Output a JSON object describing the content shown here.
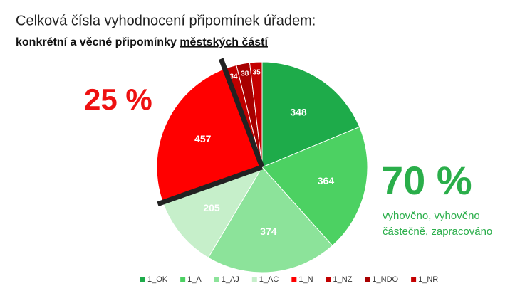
{
  "chart_data": {
    "type": "pie",
    "title": "Celková čísla vyhodnocení připomínek úřadem:",
    "subtitle": [
      "konkrétní a věcné připomínky",
      "městských částí"
    ],
    "categories": [
      "1_OK",
      "1_A",
      "1_AJ",
      "1_AC",
      "1_N",
      "1_NZ",
      "1_NDO",
      "1_NR"
    ],
    "values": [
      348,
      364,
      374,
      205,
      457,
      34,
      38,
      35
    ],
    "colors": [
      "#1eab4a",
      "#4cd162",
      "#8ce39a",
      "#c6efca",
      "#ff0000",
      "#c00000",
      "#a80000",
      "#c40000"
    ],
    "annotations": {
      "negative": "25 %",
      "positive": "70 %",
      "positive_note": [
        "vyhověno, vyhověno",
        "částečně, zapracováno"
      ]
    }
  }
}
